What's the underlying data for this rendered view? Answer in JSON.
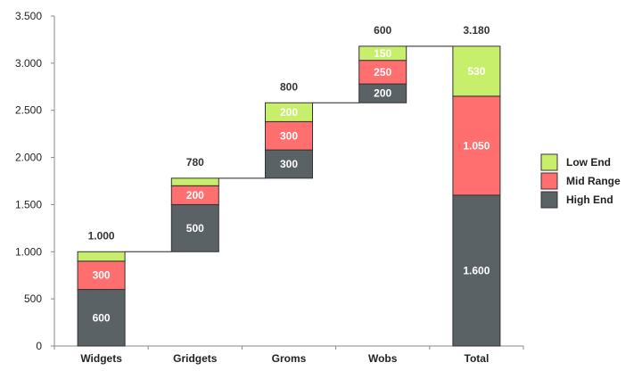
{
  "chart_data": {
    "type": "bar",
    "subtype": "stacked-waterfall",
    "categories": [
      "Widgets",
      "Gridgets",
      "Groms",
      "Wobs",
      "Total"
    ],
    "series": [
      {
        "name": "High End",
        "color": "#5a6266",
        "values": [
          600,
          500,
          300,
          200,
          1600
        ]
      },
      {
        "name": "Mid Range",
        "color": "#ff6f6f",
        "values": [
          300,
          200,
          300,
          250,
          1050
        ]
      },
      {
        "name": "Low End",
        "color": "#c8ef6b",
        "values": [
          100,
          80,
          200,
          150,
          530
        ]
      }
    ],
    "bases": [
      0,
      1000,
      1780,
      2580,
      0
    ],
    "totals": [
      1000,
      780,
      800,
      600,
      3180
    ],
    "total_labels": [
      "1.000",
      "780",
      "800",
      "600",
      "3.180"
    ],
    "segment_labels": [
      [
        "600",
        "300",
        ""
      ],
      [
        "500",
        "200",
        ""
      ],
      [
        "300",
        "300",
        "200"
      ],
      [
        "200",
        "250",
        "150"
      ],
      [
        "1.600",
        "1.050",
        "530"
      ]
    ],
    "y_ticks": [
      {
        "value": 0,
        "label": "0"
      },
      {
        "value": 500,
        "label": "500"
      },
      {
        "value": 1000,
        "label": "1.000"
      },
      {
        "value": 1500,
        "label": "1.500"
      },
      {
        "value": 2000,
        "label": "2.000"
      },
      {
        "value": 2500,
        "label": "2.500"
      },
      {
        "value": 3000,
        "label": "3.000"
      },
      {
        "value": 3500,
        "label": "3.500"
      }
    ],
    "ylim": [
      0,
      3500
    ],
    "title": "",
    "xlabel": "",
    "ylabel": "",
    "grid": false,
    "legend": {
      "position": "right",
      "entries": [
        {
          "name": "Low End",
          "color": "#c8ef6b"
        },
        {
          "name": "Mid Range",
          "color": "#ff6f6f"
        },
        {
          "name": "High End",
          "color": "#5a6266"
        }
      ]
    }
  }
}
